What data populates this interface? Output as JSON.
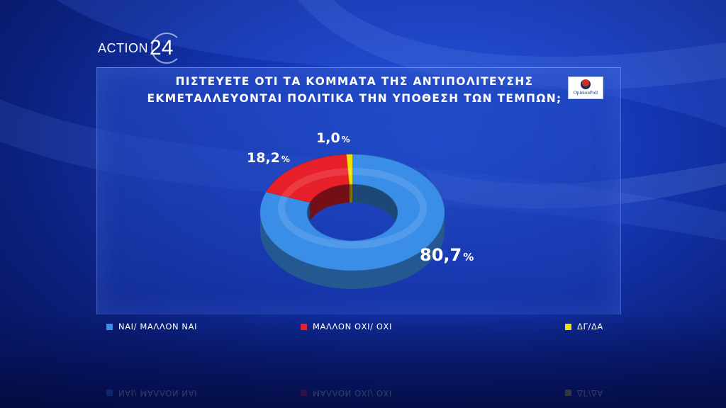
{
  "brand": {
    "word": "ACTION",
    "number": "24"
  },
  "source": {
    "name": "OpinionPoll"
  },
  "chart_data": {
    "type": "pie",
    "title_lines": [
      "ΠΙΣΤΕΥΕΤΕ ΟΤΙ ΤΑ ΚΟΜΜΑΤΑ ΤΗΣ ΑΝΤΙΠΟΛΙΤΕΥΣΗΣ",
      "ΕΚΜΕΤΑΛΛΕΥΟΝΤΑΙ ΠΟΛΙΤΙΚΑ ΤΗΝ ΥΠΟΘΕΣΗ ΤΩΝ ΤΕΜΠΩΝ;"
    ],
    "categories": [
      "ΝΑΙ/ ΜΑΛΛΟΝ ΝΑΙ",
      "ΜΑΛΛΟΝ ΟΧΙ/ ΟΧΙ",
      "ΔΓ/ΔΑ"
    ],
    "values": [
      80.7,
      18.2,
      1.0
    ],
    "value_labels": [
      "80,7",
      "18,2",
      "1,0"
    ],
    "unit": "%",
    "colors": [
      "#3a8ee8",
      "#e8202a",
      "#f3e200"
    ],
    "donut": true,
    "legend": "bottom"
  }
}
